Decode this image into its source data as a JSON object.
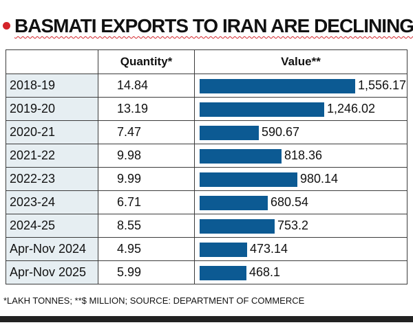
{
  "title": "BASMATI EXPORTS TO IRAN ARE DECLINING",
  "source_note": "*LAKH TONNES; **$ MILLION; SOURCE: DEPARTMENT OF COMMERCE",
  "colors": {
    "bar": "#0c5a93",
    "accent": "#d4242a",
    "year_cell": "#e6eef2"
  },
  "chart_data": {
    "type": "table",
    "title": "BASMATI EXPORTS TO IRAN ARE DECLINING",
    "columns": [
      "",
      "Quantity*",
      "Value**"
    ],
    "categories": [
      "2018-19",
      "2019-20",
      "2020-21",
      "2021-22",
      "2022-23",
      "2023-24",
      "2024-25",
      "Apr-Nov 2024",
      "Apr-Nov 2025"
    ],
    "quantity": [
      "14.84",
      "13.19",
      "7.47",
      "9.98",
      "9.99",
      "6.71",
      "8.55",
      "4.95",
      "5.99"
    ],
    "value_labels": [
      "1,556.17",
      "1,246.02",
      "590.67",
      "818.36",
      "980.14",
      "680.54",
      "753.2",
      "473.14",
      "468.1"
    ],
    "values": [
      1556.17,
      1246.02,
      590.67,
      818.36,
      980.14,
      680.54,
      753.2,
      473.14,
      468.1
    ],
    "xlim": [
      0,
      1556.17
    ]
  }
}
